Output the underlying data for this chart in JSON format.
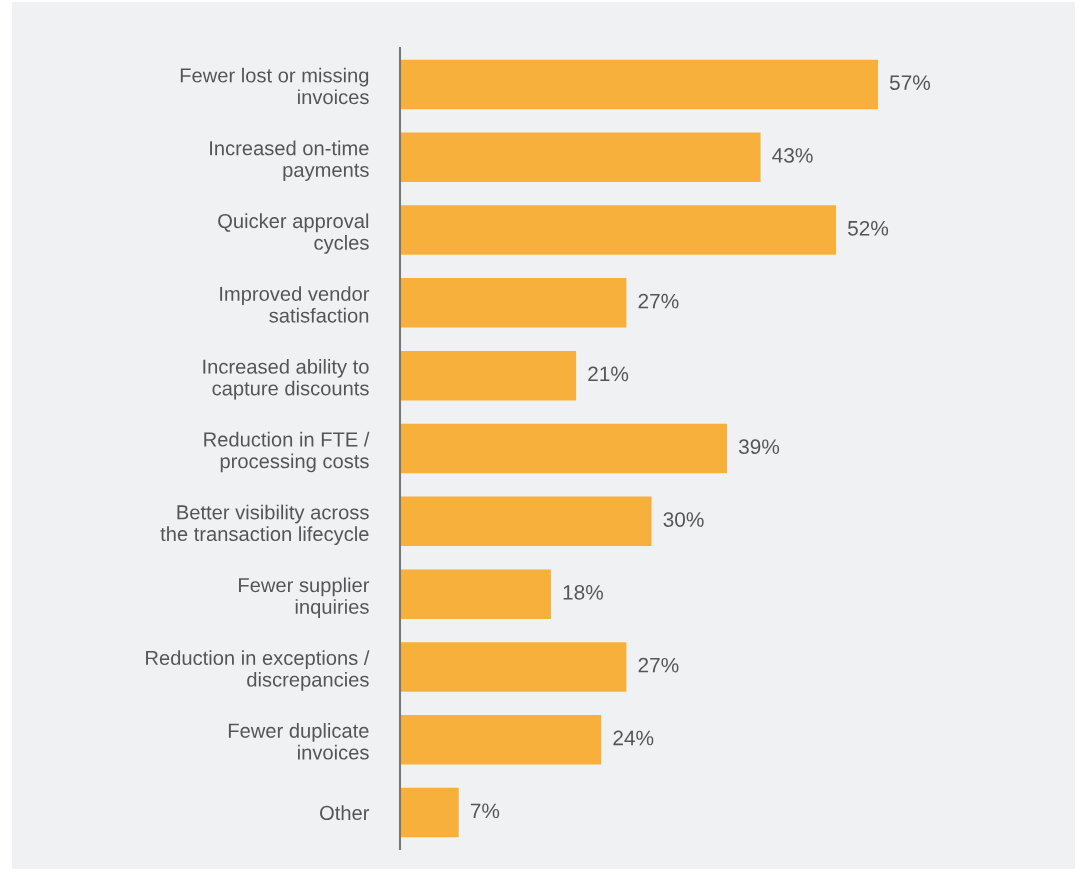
{
  "chart_data": {
    "type": "bar",
    "orientation": "horizontal",
    "categories": [
      "Fewer lost or missing\ninvoices",
      "Increased on-time\npayments",
      "Quicker approval\ncycles",
      "Improved vendor\nsatisfaction",
      "Increased ability to\ncapture discounts",
      "Reduction in FTE /\nprocessing costs",
      "Better visibility across\nthe transaction lifecycle",
      "Fewer supplier\ninquiries",
      "Reduction in exceptions /\ndiscrepancies",
      "Fewer duplicate\ninvoices",
      "Other"
    ],
    "values": [
      57,
      43,
      52,
      27,
      21,
      39,
      30,
      18,
      27,
      24,
      7
    ],
    "value_labels": [
      "57%",
      "43%",
      "52%",
      "27%",
      "21%",
      "39%",
      "30%",
      "18%",
      "27%",
      "24%",
      "7%"
    ],
    "color": "#f8b03c",
    "tick_labels": "y",
    "grid": false,
    "legend": false
  }
}
